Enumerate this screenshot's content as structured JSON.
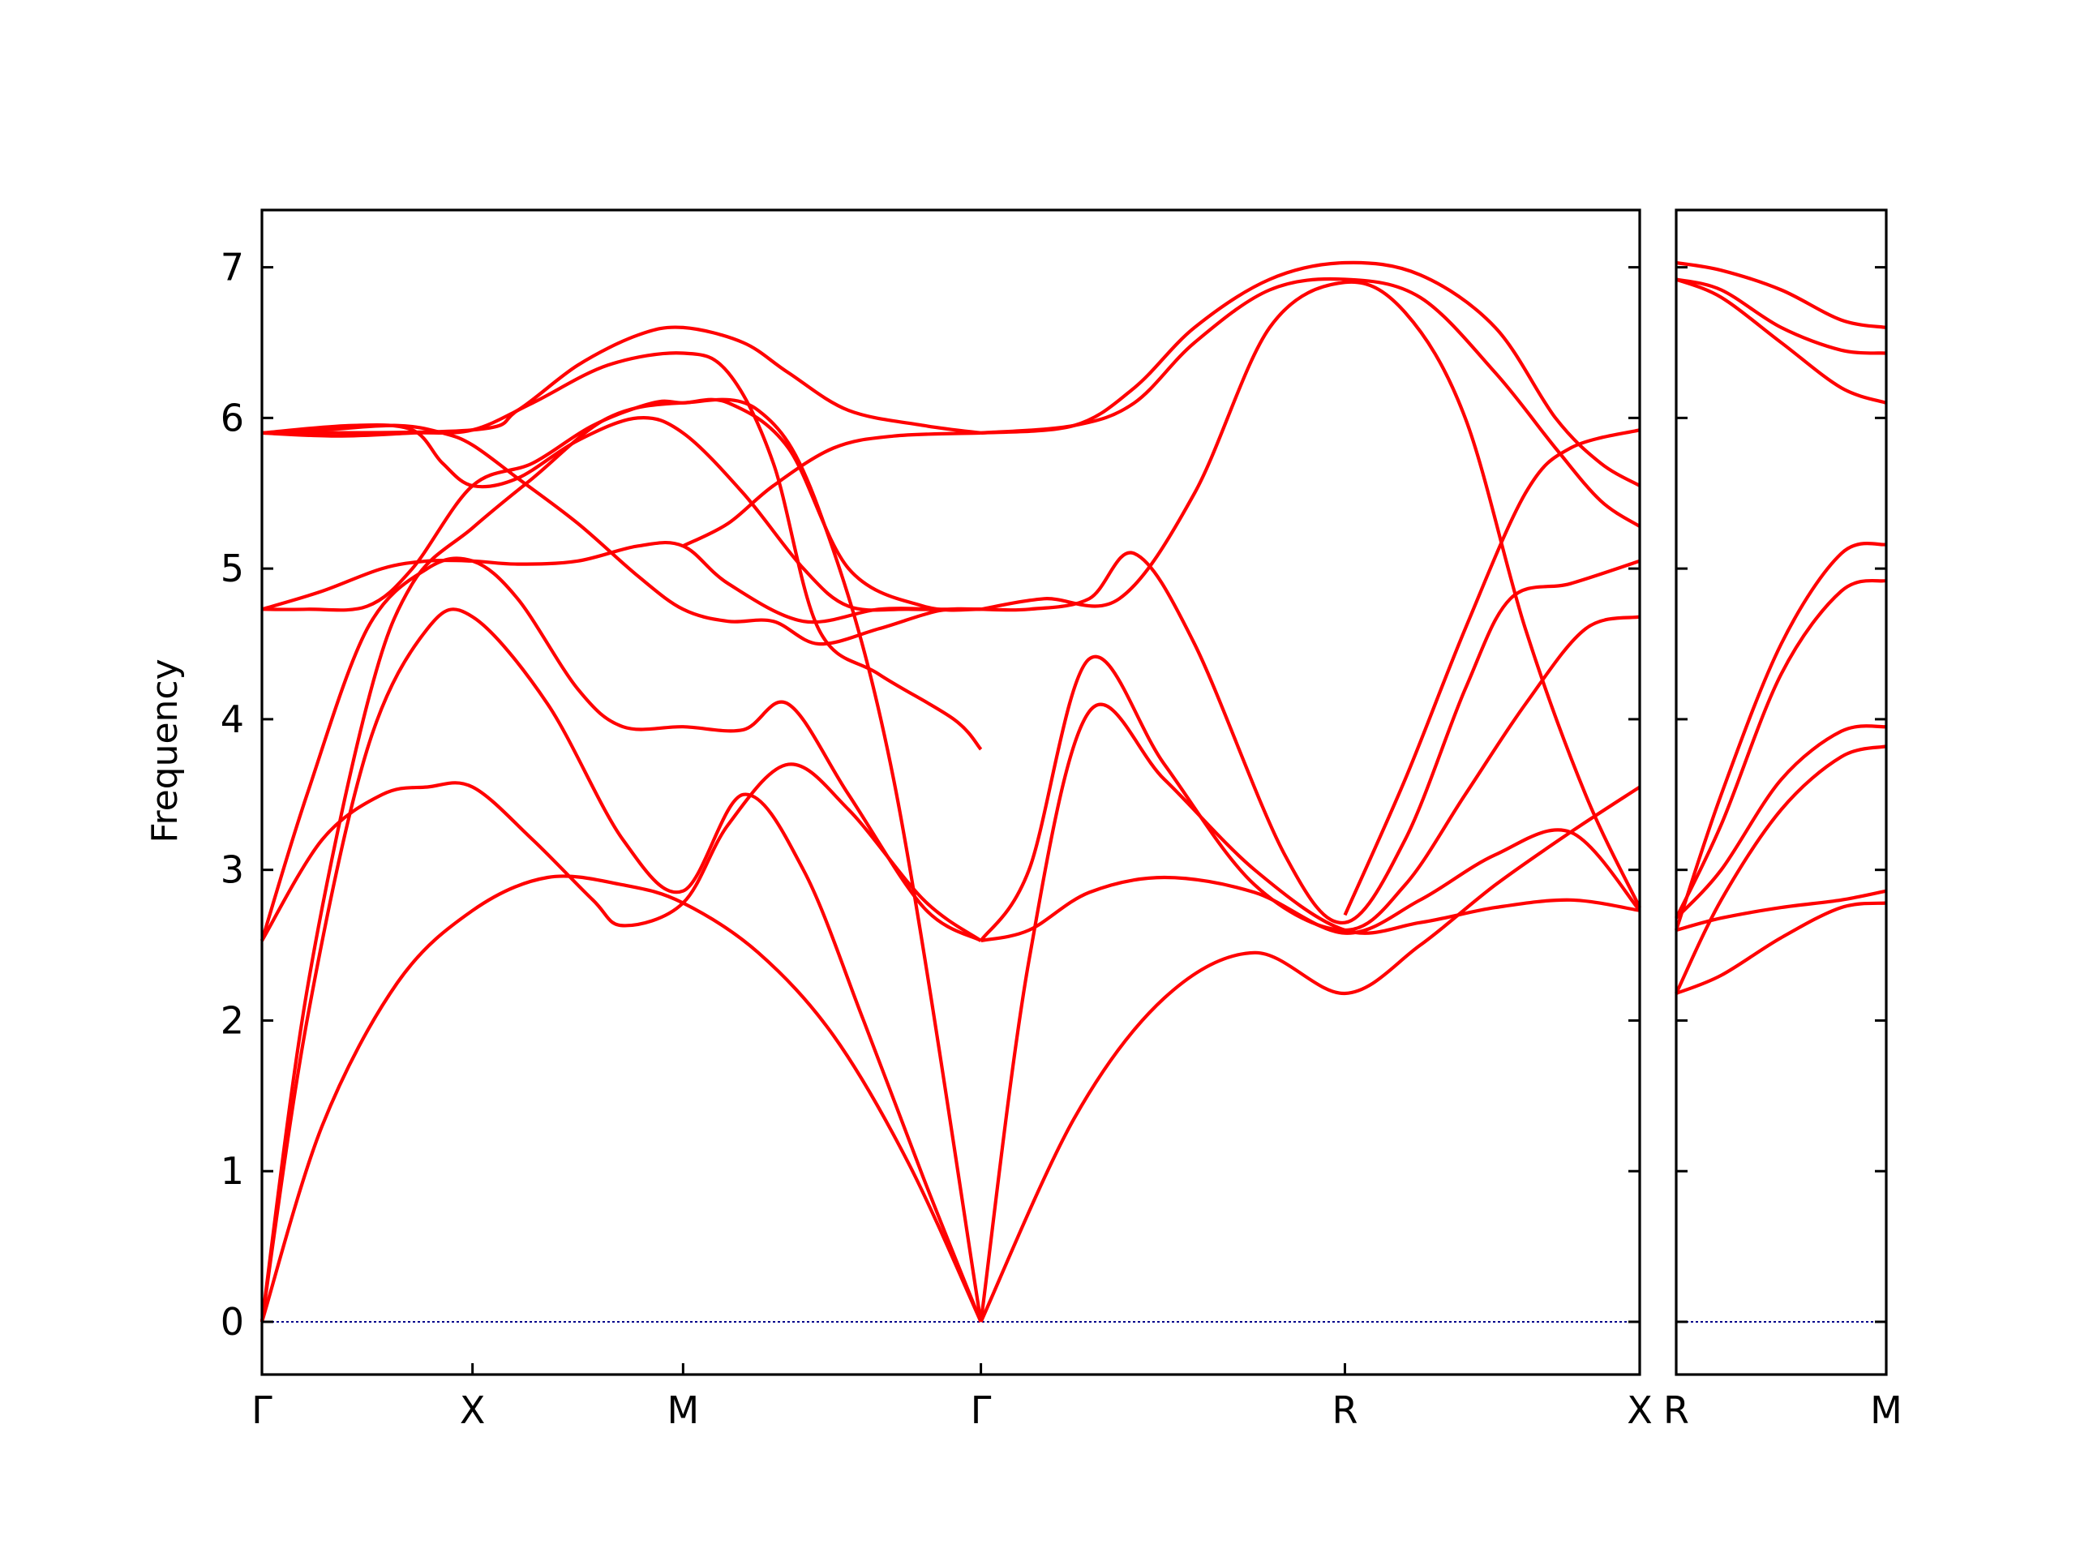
{
  "chart_data": {
    "type": "line",
    "ylabel": "Frequency",
    "ylim": [
      -0.35,
      7.38
    ],
    "yticks": [
      0,
      1,
      2,
      3,
      4,
      5,
      6,
      7
    ],
    "line_color": "#ff0000",
    "zero_line_color": "#00008b",
    "panels": [
      {
        "xlim": [
          0,
          4.58
        ],
        "xticks": [
          {
            "label": "Γ",
            "x": 0
          },
          {
            "label": "X",
            "x": 0.7
          },
          {
            "label": "M",
            "x": 1.4
          },
          {
            "label": "Γ",
            "x": 2.39
          },
          {
            "label": "R",
            "x": 3.6
          },
          {
            "label": "X",
            "x": 4.58
          }
        ],
        "series": [
          {
            "x": [
              0,
              0.2,
              0.45,
              0.7,
              0.95,
              1.2,
              1.4,
              1.65,
              1.9,
              2.15,
              2.39
            ],
            "values": [
              0,
              1.3,
              2.25,
              2.73,
              2.95,
              2.9,
              2.78,
              2.45,
              1.9,
              1.05,
              0
            ]
          },
          {
            "x": [
              0,
              0.15,
              0.35,
              0.55,
              0.7,
              0.95,
              1.2,
              1.4,
              1.6,
              1.8,
              2.0,
              2.2,
              2.39
            ],
            "values": [
              0,
              2.0,
              3.8,
              4.6,
              4.68,
              4.1,
              3.2,
              2.86,
              3.5,
              3.0,
              2.0,
              0.95,
              0
            ]
          },
          {
            "x": [
              0,
              0.15,
              0.35,
              0.5,
              0.7,
              0.9,
              1.15,
              1.4,
              1.65,
              1.85,
              2.1,
              2.39
            ],
            "values": [
              0,
              2.2,
              4.1,
              4.9,
              5.27,
              5.6,
              6.0,
              6.1,
              6.05,
              5.4,
              3.6,
              0
            ]
          },
          {
            "x": [
              0,
              0.2,
              0.4,
              0.55,
              0.7,
              0.9,
              1.1,
              1.2,
              1.4,
              1.55,
              1.75,
              1.95,
              2.2,
              2.39
            ],
            "values": [
              2.53,
              3.2,
              3.5,
              3.55,
              3.55,
              3.2,
              2.8,
              2.63,
              2.78,
              3.3,
              3.7,
              3.4,
              2.8,
              2.53
            ]
          },
          {
            "x": [
              0,
              0.15,
              0.35,
              0.55,
              0.7,
              0.85,
              1.05,
              1.2,
              1.4,
              1.6,
              1.75,
              1.95,
              2.2,
              2.39
            ],
            "values": [
              2.53,
              3.5,
              4.6,
              5.0,
              5.05,
              4.8,
              4.2,
              3.95,
              3.95,
              3.93,
              4.1,
              3.5,
              2.75,
              2.53
            ]
          },
          {
            "x": [
              0,
              0.15,
              0.35,
              0.5,
              0.7,
              0.9,
              1.1,
              1.3,
              1.4,
              1.55,
              1.75,
              1.95,
              2.2,
              2.39
            ],
            "values": [
              4.73,
              4.73,
              4.75,
              5.0,
              5.55,
              5.7,
              5.95,
              6.1,
              6.1,
              6.1,
              5.8,
              5.0,
              4.75,
              4.73
            ]
          },
          {
            "x": [
              0,
              0.2,
              0.4,
              0.55,
              0.7,
              0.85,
              1.05,
              1.25,
              1.4,
              1.55,
              1.8,
              2.05,
              2.25,
              2.39
            ],
            "values": [
              4.73,
              4.85,
              5.0,
              5.05,
              5.05,
              5.03,
              5.05,
              5.15,
              5.15,
              4.9,
              4.65,
              4.73,
              4.73,
              4.73
            ]
          },
          {
            "x": [
              0,
              0.2,
              0.45,
              0.6,
              0.7,
              0.85,
              1.05,
              1.25,
              1.4,
              1.55,
              1.7,
              1.85,
              2.05,
              2.25,
              2.39
            ],
            "values": [
              5.9,
              5.92,
              5.95,
              5.9,
              5.82,
              5.6,
              5.3,
              4.95,
              4.73,
              4.65,
              4.65,
              4.5,
              4.6,
              4.72,
              4.73
            ]
          },
          {
            "x": [
              0,
              0.3,
              0.5,
              0.6,
              0.7,
              0.85,
              1.05,
              1.25,
              1.4,
              1.6,
              1.8,
              1.95,
              2.15,
              2.39
            ],
            "values": [
              5.9,
              5.95,
              5.92,
              5.7,
              5.55,
              5.6,
              5.85,
              6.0,
              5.9,
              5.5,
              5.0,
              4.75,
              4.73,
              4.73
            ]
          },
          {
            "x": [
              0,
              0.25,
              0.5,
              0.7,
              0.9,
              1.15,
              1.4,
              1.55,
              1.7,
              1.85,
              2.05,
              2.3,
              2.39
            ],
            "values": [
              5.9,
              5.88,
              5.9,
              5.92,
              6.1,
              6.35,
              6.43,
              6.3,
              5.7,
              4.6,
              4.3,
              4.0,
              3.8
            ]
          },
          {
            "x": [
              0,
              0.7,
              0.85,
              1.05,
              1.25,
              1.4,
              1.6,
              1.75,
              1.95,
              2.2,
              2.39
            ],
            "values": [
              5.9,
              5.92,
              6.05,
              6.35,
              6.55,
              6.6,
              6.5,
              6.3,
              6.05,
              5.95,
              5.9
            ]
          },
          {
            "x": [
              1.4,
              1.55,
              1.7,
              1.9,
              2.1,
              2.39
            ],
            "values": [
              5.15,
              5.3,
              5.55,
              5.8,
              5.88,
              5.9
            ]
          },
          {
            "x": [
              2.39,
              2.7,
              3.0,
              3.3,
              3.6,
              3.85,
              4.1,
              4.35,
              4.58
            ],
            "values": [
              0,
              1.35,
              2.15,
              2.45,
              2.18,
              2.5,
              2.9,
              3.25,
              3.55
            ]
          },
          {
            "x": [
              2.39,
              2.55,
              2.75,
              3.0,
              3.3,
              3.6,
              3.85,
              4.1,
              4.35,
              4.58
            ],
            "values": [
              0,
              2.4,
              4.05,
              3.6,
              3.0,
              2.6,
              2.65,
              2.75,
              2.8,
              2.73
            ]
          },
          {
            "x": [
              2.39,
              2.55,
              2.75,
              3.0,
              3.3,
              3.6,
              3.85,
              4.1,
              4.35,
              4.58
            ],
            "values": [
              2.53,
              2.6,
              2.85,
              2.95,
              2.85,
              2.58,
              2.8,
              3.1,
              3.25,
              2.73
            ]
          },
          {
            "x": [
              2.39,
              2.55,
              2.75,
              3.0,
              3.3,
              3.6,
              3.8,
              4.0,
              4.2,
              4.4,
              4.58
            ],
            "values": [
              2.53,
              3.0,
              4.4,
              3.7,
              2.9,
              2.6,
              2.9,
              3.5,
              4.1,
              4.6,
              4.68
            ]
          },
          {
            "x": [
              2.39,
              2.55,
              2.75,
              2.9,
              3.1,
              3.4,
              3.6,
              3.8,
              4.0,
              4.15,
              4.35,
              4.58
            ],
            "values": [
              4.73,
              4.73,
              4.8,
              5.1,
              4.5,
              3.1,
              2.65,
              3.2,
              4.2,
              4.8,
              4.9,
              5.05
            ]
          },
          {
            "x": [
              2.39,
              2.6,
              2.85,
              3.1,
              3.35,
              3.6,
              3.8,
              4.0,
              4.2,
              4.4,
              4.58
            ],
            "values": [
              4.73,
              4.8,
              4.8,
              5.5,
              6.6,
              6.9,
              6.7,
              6.0,
              4.6,
              3.5,
              2.75
            ]
          },
          {
            "x": [
              2.39,
              2.7,
              2.9,
              3.1,
              3.35,
              3.6,
              3.85,
              4.1,
              4.3,
              4.45,
              4.58
            ],
            "values": [
              5.9,
              5.95,
              6.1,
              6.5,
              6.85,
              6.92,
              6.8,
              6.3,
              5.8,
              5.45,
              5.28
            ]
          },
          {
            "x": [
              2.39,
              2.7,
              2.9,
              3.1,
              3.35,
              3.6,
              3.85,
              4.1,
              4.3,
              4.45,
              4.58
            ],
            "values": [
              5.9,
              5.95,
              6.2,
              6.6,
              6.92,
              7.03,
              6.95,
              6.6,
              6.0,
              5.7,
              5.55
            ]
          },
          {
            "x": [
              3.6,
              3.8,
              4.0,
              4.2,
              4.35,
              4.58
            ],
            "values": [
              2.7,
              3.6,
              4.6,
              5.5,
              5.8,
              5.92
            ]
          }
        ]
      },
      {
        "xlim": [
          0,
          0.7
        ],
        "xticks": [
          {
            "label": "R",
            "x": 0
          },
          {
            "label": "M",
            "x": 0.7
          }
        ],
        "series": [
          {
            "x": [
              0,
              0.15,
              0.35,
              0.55,
              0.7
            ],
            "values": [
              2.18,
              2.3,
              2.55,
              2.75,
              2.78
            ]
          },
          {
            "x": [
              0,
              0.15,
              0.35,
              0.55,
              0.7
            ],
            "values": [
              2.18,
              2.8,
              3.4,
              3.75,
              3.82
            ]
          },
          {
            "x": [
              0,
              0.15,
              0.35,
              0.55,
              0.7
            ],
            "values": [
              2.6,
              2.68,
              2.75,
              2.8,
              2.86
            ]
          },
          {
            "x": [
              0,
              0.15,
              0.35,
              0.55,
              0.7
            ],
            "values": [
              2.68,
              3.0,
              3.6,
              3.92,
              3.95
            ]
          },
          {
            "x": [
              0,
              0.15,
              0.35,
              0.55,
              0.7
            ],
            "values": [
              2.68,
              3.3,
              4.3,
              4.85,
              4.92
            ]
          },
          {
            "x": [
              0,
              0.15,
              0.35,
              0.55,
              0.7
            ],
            "values": [
              2.6,
              3.5,
              4.5,
              5.1,
              5.16
            ]
          },
          {
            "x": [
              0,
              0.15,
              0.35,
              0.55,
              0.7
            ],
            "values": [
              6.92,
              6.8,
              6.5,
              6.2,
              6.1
            ]
          },
          {
            "x": [
              0,
              0.15,
              0.35,
              0.55,
              0.7
            ],
            "values": [
              6.92,
              6.85,
              6.6,
              6.45,
              6.43
            ]
          },
          {
            "x": [
              0,
              0.15,
              0.35,
              0.55,
              0.7
            ],
            "values": [
              7.03,
              6.98,
              6.85,
              6.65,
              6.6
            ]
          }
        ]
      }
    ]
  }
}
